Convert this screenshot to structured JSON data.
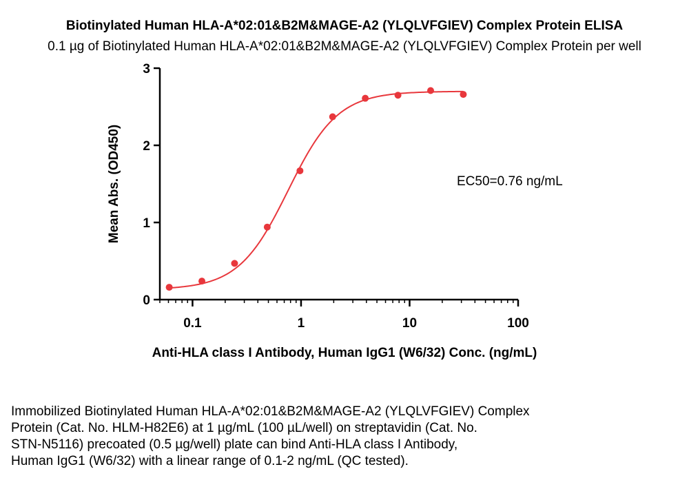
{
  "chart_data": {
    "type": "scatter",
    "title": "Biotinylated Human HLA-A*02:01&B2M&MAGE-A2 (YLQLVFGIEV) Complex Protein ELISA",
    "subtitle": "0.1 µg of Biotinylated Human HLA-A*02:01&B2M&MAGE-A2 (YLQLVFGIEV) Complex Protein per well",
    "xlabel": "Anti-HLA class I Antibody, Human IgG1 (W6/32) Conc. (ng/mL)",
    "ylabel": "Mean Abs. (OD450)",
    "x_scale": "log",
    "xlim": [
      0.05,
      100
    ],
    "ylim": [
      0,
      3
    ],
    "x_ticks": [
      0.1,
      1,
      10,
      100
    ],
    "x_tick_labels": [
      "0.1",
      "1",
      "10",
      "100"
    ],
    "y_ticks": [
      0,
      1,
      2,
      3
    ],
    "y_tick_labels": [
      "0",
      "1",
      "2",
      "3"
    ],
    "grid": false,
    "annotation": "EC50=0.76 ng/mL",
    "color": "#e8373c",
    "series": [
      {
        "x": [
          0.061,
          0.122,
          0.244,
          0.488,
          0.977,
          1.953,
          3.906,
          7.813,
          15.625,
          31.25
        ],
        "y": [
          0.16,
          0.24,
          0.47,
          0.94,
          1.67,
          2.37,
          2.61,
          2.65,
          2.71,
          2.66
        ]
      }
    ],
    "fit": {
      "model": "4PL",
      "bottom": 0.13,
      "top": 2.7,
      "ec50": 0.76,
      "hill": 1.9
    }
  },
  "caption_lines": [
    "Immobilized Biotinylated Human HLA-A*02:01&B2M&MAGE-A2 (YLQLVFGIEV) Complex",
    "Protein (Cat. No. HLM-H82E6) at 1 µg/mL (100 µL/well) on streptavidin (Cat. No.",
    "STN-N5116) precoated (0.5 µg/well) plate can bind Anti-HLA class I Antibody,",
    "Human IgG1 (W6/32) with a linear range of 0.1-2 ng/mL (QC tested)."
  ]
}
